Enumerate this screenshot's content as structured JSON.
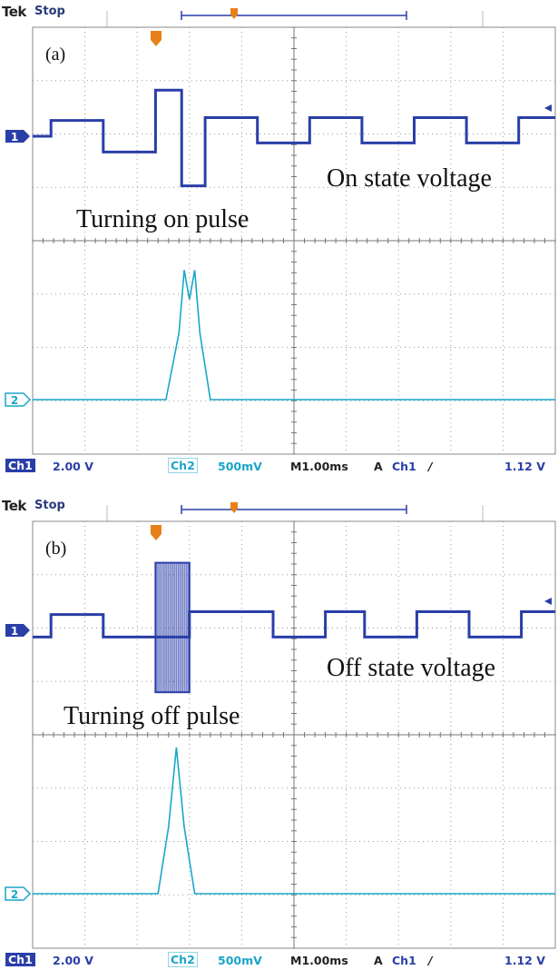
{
  "colors": {
    "ch1": "#2a3ea8",
    "ch2": "#1aa5c8",
    "marker": "#e8801a",
    "grid": "#9a9a9a"
  },
  "chart_data": [
    {
      "type": "line",
      "header_brand": "Tek",
      "header_status": "Stop",
      "panel_label": "(a)",
      "annotations": [
        "On state voltage",
        "Turning on pulse"
      ],
      "status": {
        "ch1": "Ch1",
        "ch1_scale": "2.00 V",
        "ch2": "Ch2",
        "ch2_scale": "500mV",
        "timebase_prefix": "M",
        "timebase": "1.00ms",
        "trigger_mode": "A",
        "trigger_source": "Ch1",
        "trigger_slope": "∕",
        "trigger_level": "1.12 V"
      },
      "channel_markers": {
        "ch1": "1",
        "ch2": "2"
      },
      "xlim": [
        0,
        10
      ],
      "series": [
        {
          "x": [
            0,
            0.35,
            0.35,
            1.35,
            1.35,
            2.35,
            2.35,
            2.85,
            2.85,
            3.3,
            3.3,
            4.3,
            4.3,
            5.3,
            5.3,
            6.3,
            6.3,
            7.3,
            7.3,
            8.3,
            8.3,
            9.3,
            9.3,
            10
          ],
          "y": [
            0.0,
            0.0,
            0.28,
            0.28,
            -0.28,
            -0.28,
            0.82,
            0.82,
            -0.88,
            -0.88,
            0.33,
            0.33,
            -0.12,
            -0.12,
            0.33,
            0.33,
            -0.12,
            -0.12,
            0.33,
            0.33,
            -0.12,
            -0.12,
            0.33,
            0.33
          ]
        },
        {
          "x": [
            0,
            2.55,
            2.8,
            2.9,
            3.0,
            3.1,
            3.2,
            3.4,
            3.65,
            10
          ],
          "y": [
            0.0,
            0.0,
            0.8,
            1.55,
            1.2,
            1.55,
            0.8,
            0.0,
            0.0,
            0.0
          ]
        }
      ]
    },
    {
      "type": "line",
      "header_brand": "Tek",
      "header_status": "Stop",
      "panel_label": "(b)",
      "annotations": [
        "Off state voltage",
        "Turning off pulse"
      ],
      "status": {
        "ch1": "Ch1",
        "ch1_scale": "2.00 V",
        "ch2": "Ch2",
        "ch2_scale": "500mV",
        "timebase_prefix": "M",
        "timebase": "1.00ms",
        "trigger_mode": "A",
        "trigger_source": "Ch1",
        "trigger_slope": "∕",
        "trigger_level": "1.12 V"
      },
      "channel_markers": {
        "ch1": "1",
        "ch2": "2"
      },
      "xlim": [
        0,
        10
      ],
      "series": [
        {
          "x": [
            0,
            0.35,
            0.35,
            1.35,
            1.35,
            2.35,
            2.35,
            3.0,
            3.0,
            3.6,
            3.6,
            4.6,
            4.6,
            5.6,
            5.6,
            6.35,
            6.35,
            7.35,
            7.35,
            8.35,
            8.35,
            9.35,
            9.35,
            10
          ],
          "y": [
            -0.12,
            -0.12,
            0.28,
            0.28,
            -0.12,
            -0.12,
            -0.12,
            -0.12,
            0.33,
            0.33,
            0.33,
            0.33,
            -0.12,
            -0.12,
            0.33,
            0.33,
            -0.12,
            -0.12,
            0.33,
            0.33,
            -0.12,
            -0.12,
            0.33,
            0.33
          ],
          "burst": {
            "x_start": 2.35,
            "x_end": 3.0,
            "y_min": -1.1,
            "y_max": 1.2
          }
        },
        {
          "x": [
            0,
            2.4,
            2.6,
            2.75,
            2.9,
            3.1,
            10
          ],
          "y": [
            0.0,
            0.0,
            0.8,
            1.75,
            0.8,
            0.0,
            0.0
          ]
        }
      ]
    }
  ]
}
